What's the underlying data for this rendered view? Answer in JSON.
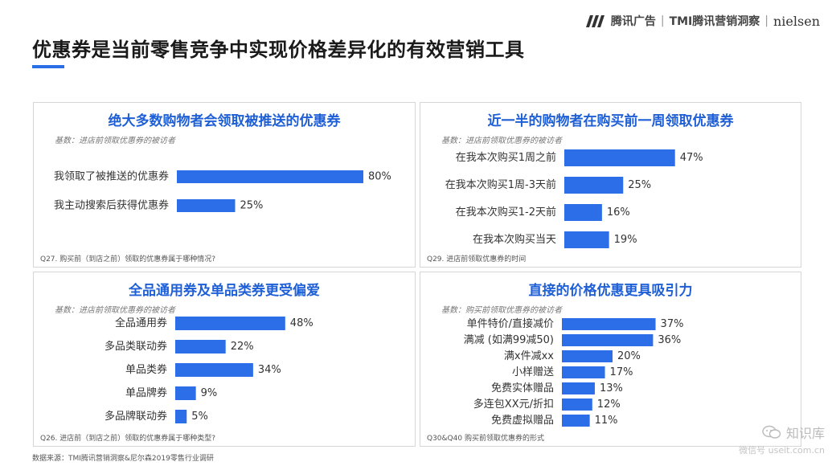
{
  "header": {
    "title": "优惠券是当前零售竞争中实现价格差异化的有效营销工具",
    "logo_tencent": "腾讯广告",
    "logo_sep": "|",
    "logo_tmi": "TMI腾讯营销洞察",
    "logo_sep2": "|",
    "logo_nielsen": "nielsen"
  },
  "footer": {
    "source": "数据来源：TMI腾讯营销洞察&尼尔森2019零售行业调研"
  },
  "watermark": {
    "name": "知识库",
    "wechat": "微信号 useit.com.cn"
  },
  "colors": {
    "accent": "#2b6ee8",
    "title_blue": "#1f5fd6"
  },
  "chart_data": [
    {
      "type": "bar",
      "orientation": "horizontal",
      "title": "绝大多数购物者会领取被推送的优惠券",
      "base": "基数：进店前领取优惠券的被访者",
      "question": "Q27. 购买前（到店之前）领取的优惠券属于哪种情况?",
      "categories": [
        "我领取了被推送的优惠券",
        "我主动搜索后获得优惠券"
      ],
      "values": [
        80,
        25
      ],
      "value_labels": [
        "80%",
        "25%"
      ],
      "xlim": [
        0,
        100
      ]
    },
    {
      "type": "bar",
      "orientation": "horizontal",
      "title": "近一半的购物者在购买前一周领取优惠券",
      "base": "基数：进店前领取优惠券的被访者",
      "question": "Q29. 进店前领取优惠券的时间",
      "categories": [
        "在我本次购买1周之前",
        "在我本次购买1周-3天前",
        "在我本次购买1-2天前",
        "在我本次购买当天"
      ],
      "values": [
        47,
        25,
        16,
        19
      ],
      "value_labels": [
        "47%",
        "25%",
        "16%",
        "19%"
      ],
      "xlim": [
        0,
        100
      ]
    },
    {
      "type": "bar",
      "orientation": "horizontal",
      "title": "全品通用券及单品类券更受偏爱",
      "base": "基数：进店前领取优惠券的被访者",
      "question": "Q26. 进店前（到店之前）领取的优惠券属于哪种类型?",
      "categories": [
        "全品通用券",
        "多品类联动券",
        "单品类券",
        "单品牌券",
        "多品牌联动券"
      ],
      "values": [
        48,
        22,
        34,
        9,
        5
      ],
      "value_labels": [
        "48%",
        "22%",
        "34%",
        "9%",
        "5%"
      ],
      "xlim": [
        0,
        100
      ]
    },
    {
      "type": "bar",
      "orientation": "horizontal",
      "title": "直接的价格优惠更具吸引力",
      "base": "基数：购买前领取优惠券的被访者",
      "question": "Q30&Q40 购买前领取优惠券的形式",
      "categories": [
        "单件特价/直接减价",
        "满减 (如满99减50)",
        "满x件减xx",
        "小样赠送",
        "免费实体赠品",
        "多连包XX元/折扣",
        "免费虚拟赠品"
      ],
      "values": [
        37,
        36,
        20,
        17,
        13,
        12,
        11
      ],
      "value_labels": [
        "37%",
        "36%",
        "20%",
        "17%",
        "13%",
        "12%",
        "11%"
      ],
      "xlim": [
        0,
        100
      ]
    }
  ]
}
